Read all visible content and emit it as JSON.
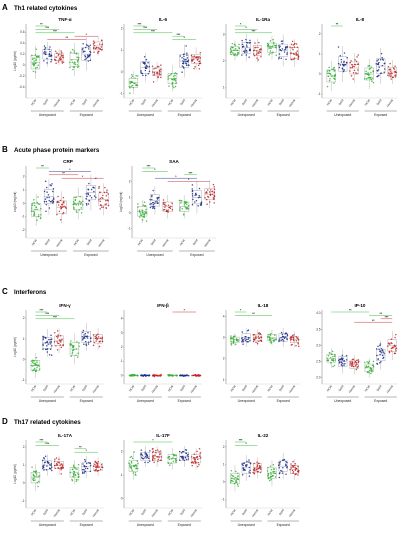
{
  "colors": {
    "HCW": "#2db52d",
    "Solid": "#1a2a8c",
    "Hemat": "#c42222",
    "box": "#888888"
  },
  "x_labels": [
    "HCW",
    "Solid",
    "Hemat",
    "HCW",
    "Solid",
    "Hemat"
  ],
  "groups": [
    "Unexposed",
    "Exposed"
  ],
  "sections": [
    {
      "letter": "A",
      "title": "Th1 related cytokines",
      "panels": [
        {
          "title": "TNF-α",
          "ylabel": "Log10 (pg/ml)",
          "ylim": [
            -0.6,
            0.75
          ],
          "ticks": [
            "0.6",
            "0.4",
            "0.2",
            "0",
            "-0.2",
            "-0.4"
          ],
          "tickvals": [
            0.6,
            0.4,
            0.2,
            0,
            -0.2,
            -0.4
          ],
          "medians": [
            0.05,
            0.2,
            0.15,
            0.1,
            0.2,
            0.35
          ],
          "spread": [
            0.2,
            0.15,
            0.1,
            0.2,
            0.2,
            0.12
          ],
          "sig": [
            {
              "a": 0,
              "b": 1,
              "label": "**",
              "c": "HCW"
            },
            {
              "a": 0,
              "b": 2,
              "label": "***",
              "c": "HCW"
            },
            {
              "a": 0,
              "b": 3,
              "label": "***",
              "c": "HCW"
            },
            {
              "a": 3,
              "b": 5,
              "label": "*",
              "c": "Hemat"
            },
            {
              "a": 1,
              "b": 4,
              "label": "**",
              "c": "Hemat"
            }
          ]
        },
        {
          "title": "IL-6",
          "ylabel": "",
          "ylim": [
            -1.2,
            2.2
          ],
          "ticks": [
            "2",
            "1",
            "0",
            "-1"
          ],
          "tickvals": [
            2,
            1,
            0,
            -1
          ],
          "medians": [
            -0.5,
            0.2,
            0.0,
            -0.3,
            0.5,
            0.6
          ],
          "spread": [
            0.35,
            0.45,
            0.3,
            0.4,
            0.5,
            0.35
          ],
          "sig": [
            {
              "a": 0,
              "b": 1,
              "label": "***",
              "c": "HCW"
            },
            {
              "a": 0,
              "b": 2,
              "label": "***",
              "c": "HCW"
            },
            {
              "a": 0,
              "b": 3,
              "label": "***",
              "c": "HCW"
            },
            {
              "a": 3,
              "b": 4,
              "label": "***",
              "c": "HCW"
            },
            {
              "a": 3,
              "b": 5,
              "label": "*",
              "c": "HCW"
            }
          ]
        },
        {
          "title": "IL-1Ra",
          "ylabel": "",
          "ylim": [
            0.6,
            3.4
          ],
          "ticks": [
            "3",
            "2",
            "1"
          ],
          "tickvals": [
            3,
            2,
            1
          ],
          "medians": [
            2.4,
            2.5,
            2.4,
            2.5,
            2.4,
            2.3
          ],
          "spread": [
            0.25,
            0.35,
            0.3,
            0.3,
            0.4,
            0.35
          ],
          "sig": [
            {
              "a": 0,
              "b": 1,
              "label": "*",
              "c": "HCW"
            },
            {
              "a": 0,
              "b": 2,
              "label": "*",
              "c": "HCW"
            },
            {
              "a": 0,
              "b": 3,
              "label": "***",
              "c": "HCW"
            }
          ]
        },
        {
          "title": "IL-8",
          "ylabel": "",
          "ylim": [
            -1.2,
            2.5
          ],
          "ticks": [
            "2",
            "1",
            "0",
            "-1"
          ],
          "tickvals": [
            2,
            1,
            0,
            -1
          ],
          "medians": [
            -0.1,
            0.5,
            0.3,
            0.0,
            0.4,
            0.1
          ],
          "spread": [
            0.5,
            0.6,
            0.5,
            0.5,
            0.6,
            0.4
          ],
          "sig": [
            {
              "a": 0,
              "b": 1,
              "label": "**",
              "c": "HCW"
            }
          ]
        }
      ]
    },
    {
      "letter": "B",
      "title": "Acute phase protein markers",
      "panels": [
        {
          "title": "CRP",
          "ylabel": "Log10 (mg/ml)",
          "ylim": [
            -2.6,
            2.8
          ],
          "ticks": [
            "2",
            "1",
            "0",
            "-1",
            "-2"
          ],
          "tickvals": [
            2,
            1,
            0,
            -1,
            -2
          ],
          "medians": [
            -0.5,
            0.5,
            -0.3,
            0.0,
            0.8,
            0.3
          ],
          "spread": [
            0.8,
            0.9,
            0.8,
            0.8,
            0.9,
            0.8
          ],
          "sig": [
            {
              "a": 0,
              "b": 1,
              "label": "**",
              "c": "HCW"
            },
            {
              "a": 1,
              "b": 4,
              "label": "*",
              "c": "Solid"
            },
            {
              "a": 1,
              "b": 3,
              "label": "**",
              "c": "Hemat"
            },
            {
              "a": 2,
              "b": 5,
              "label": "*",
              "c": "Hemat"
            }
          ]
        },
        {
          "title": "SAA",
          "ylabel": "Log10 (mg/ml)",
          "ylim": [
            -1.6,
            3.0
          ],
          "ticks": [
            "2",
            "1",
            "0",
            "-1"
          ],
          "tickvals": [
            2,
            1,
            0,
            -1
          ],
          "medians": [
            0.1,
            0.8,
            0.4,
            0.4,
            1.0,
            1.2
          ],
          "spread": [
            0.5,
            0.6,
            0.5,
            0.5,
            0.7,
            0.6
          ],
          "sig": [
            {
              "a": 0,
              "b": 1,
              "label": "***",
              "c": "HCW"
            },
            {
              "a": 0,
              "b": 2,
              "label": "*",
              "c": "HCW"
            },
            {
              "a": 3,
              "b": 4,
              "label": "***",
              "c": "HCW"
            },
            {
              "a": 1,
              "b": 4,
              "label": "*",
              "c": "Solid"
            },
            {
              "a": 2,
              "b": 5,
              "label": "*",
              "c": "Hemat"
            }
          ]
        }
      ]
    },
    {
      "letter": "C",
      "title": "Interferons",
      "panels": [
        {
          "title": "IFN-γ",
          "ylabel": "Log10 (pg/ml)",
          "ylim": [
            -1.2,
            2.4
          ],
          "ticks": [
            "2",
            "1",
            "0",
            "-1"
          ],
          "tickvals": [
            2,
            1,
            0,
            -1
          ],
          "medians": [
            -0.3,
            0.8,
            0.9,
            0.5,
            1.1,
            1.0
          ],
          "spread": [
            0.4,
            0.45,
            0.4,
            0.5,
            0.45,
            0.35
          ],
          "sig": [
            {
              "a": 0,
              "b": 1,
              "label": "***",
              "c": "HCW"
            },
            {
              "a": 0,
              "b": 2,
              "label": "***",
              "c": "HCW"
            },
            {
              "a": 0,
              "b": 3,
              "label": "***",
              "c": "HCW"
            }
          ]
        },
        {
          "title": "IFN-β",
          "ylabel": "",
          "ylim": [
            -0.6,
            4.6
          ],
          "ticks": [
            "4",
            "3",
            "2",
            "1",
            "0"
          ],
          "tickvals": [
            4,
            3,
            2,
            1,
            0
          ],
          "medians": [
            0.0,
            0.0,
            0.0,
            0.0,
            0.0,
            0.0
          ],
          "spread": [
            0.05,
            0.05,
            0.05,
            0.05,
            0.05,
            0.05
          ],
          "sig": [
            {
              "a": 3,
              "b": 5,
              "label": "*",
              "c": "Hemat"
            }
          ]
        },
        {
          "title": "IL-18",
          "ylabel": "",
          "ylim": [
            0.8,
            4.3
          ],
          "ticks": [
            "4",
            "3",
            "2",
            "1"
          ],
          "tickvals": [
            4,
            3,
            2,
            1
          ],
          "medians": [
            2.9,
            3.0,
            3.0,
            3.0,
            3.0,
            2.9
          ],
          "spread": [
            0.2,
            0.3,
            0.25,
            0.25,
            0.3,
            0.25
          ],
          "sig": [
            {
              "a": 0,
              "b": 1,
              "label": "*",
              "c": "HCW"
            },
            {
              "a": 0,
              "b": 3,
              "label": "**",
              "c": "HCW"
            }
          ]
        },
        {
          "title": "IP-10",
          "ylabel": "",
          "ylim": [
            1.8,
            4.1
          ],
          "ticks": [
            "4.0",
            "3.5",
            "3.0",
            "2.5",
            "2.0"
          ],
          "tickvals": [
            4.0,
            3.5,
            3.0,
            2.5,
            2.0
          ],
          "medians": [
            2.6,
            2.5,
            2.4,
            2.3,
            2.7,
            3.0
          ],
          "spread": [
            0.2,
            0.25,
            0.2,
            0.2,
            0.3,
            0.3
          ],
          "sig": [
            {
              "a": 0,
              "b": 3,
              "label": "**",
              "c": "HCW"
            },
            {
              "a": 3,
              "b": 5,
              "label": "**",
              "c": "HCW"
            },
            {
              "a": 4,
              "b": 5,
              "label": "***",
              "c": "Hemat"
            },
            {
              "a": 2,
              "b": 5,
              "label": "**",
              "c": "Hemat"
            }
          ]
        }
      ]
    },
    {
      "letter": "D",
      "title": "Th17 related cytokines",
      "panels": [
        {
          "title": "IL-17A",
          "ylabel": "Log10 (pg/ml)",
          "ylim": [
            -1.4,
            2.4
          ],
          "ticks": [
            "2",
            "1",
            "0",
            "-1"
          ],
          "tickvals": [
            2,
            1,
            0,
            -1
          ],
          "medians": [
            0.3,
            1.0,
            1.0,
            0.6,
            0.9,
            0.9
          ],
          "spread": [
            0.5,
            0.4,
            0.35,
            0.45,
            0.4,
            0.35
          ],
          "sig": [
            {
              "a": 0,
              "b": 1,
              "label": "***",
              "c": "HCW"
            },
            {
              "a": 0,
              "b": 2,
              "label": "***",
              "c": "HCW"
            },
            {
              "a": 3,
              "b": 4,
              "label": "**",
              "c": "HCW"
            },
            {
              "a": 3,
              "b": 5,
              "label": "*",
              "c": "HCW"
            }
          ]
        },
        {
          "title": "IL-17F",
          "ylabel": "",
          "ylim": [
            -0.4,
            2.5
          ],
          "ticks": [
            "2",
            "1",
            "0"
          ],
          "tickvals": [
            2,
            1,
            0
          ],
          "medians": [
            1.4,
            1.8,
            1.8,
            1.7,
            1.8,
            1.7
          ],
          "spread": [
            0.4,
            0.3,
            0.3,
            0.3,
            0.3,
            0.3
          ],
          "sig": [
            {
              "a": 0,
              "b": 3,
              "label": "*",
              "c": "HCW"
            }
          ]
        },
        {
          "title": "IL-22",
          "ylabel": "",
          "ylim": [
            -1.5,
            2.4
          ],
          "ticks": [
            "2",
            "1",
            "0",
            "-1"
          ],
          "tickvals": [
            2,
            1,
            0,
            -1
          ],
          "medians": [
            0.2,
            0.8,
            0.8,
            0.5,
            0.9,
            0.7
          ],
          "spread": [
            0.5,
            0.5,
            0.4,
            0.5,
            0.5,
            0.4
          ],
          "sig": [
            {
              "a": 0,
              "b": 1,
              "label": "***",
              "c": "HCW"
            },
            {
              "a": 0,
              "b": 2,
              "label": "*",
              "c": "HCW"
            }
          ]
        }
      ]
    }
  ]
}
